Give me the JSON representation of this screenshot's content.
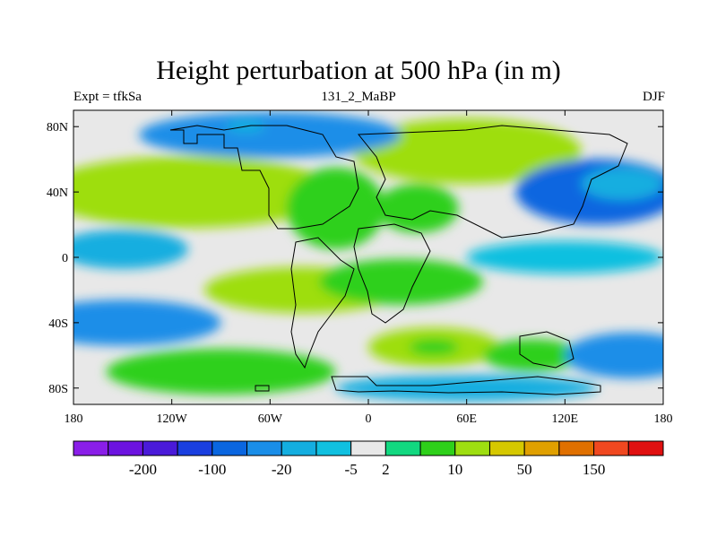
{
  "chart_data": {
    "type": "heatmap",
    "title": "Height perturbation at 500 hPa (in m)",
    "left_label": "Expt = tfkSa",
    "center_label": "131_2_MaBP",
    "right_label": "DJF",
    "x_ticks": [
      "180",
      "120W",
      "60W",
      "0",
      "60E",
      "120E",
      "180"
    ],
    "x_tick_values": [
      -180,
      -120,
      -60,
      0,
      60,
      120,
      180
    ],
    "y_ticks": [
      "80N",
      "40N",
      "0",
      "40S",
      "80S"
    ],
    "y_tick_values": [
      80,
      40,
      0,
      -40,
      -80
    ],
    "xlim": [
      -180,
      180
    ],
    "ylim": [
      -90,
      90
    ],
    "colorbar_labels": [
      "-200",
      "-100",
      "-20",
      "-5",
      "2",
      "10",
      "50",
      "150"
    ],
    "colorbar_colors": [
      "#8a1ee8",
      "#6c13e0",
      "#4a1ad9",
      "#1a3fe0",
      "#0a66e0",
      "#1a8ee8",
      "#14aee0",
      "#10c0e0",
      "#e8e8e8",
      "#12d880",
      "#2ed01a",
      "#9ede10",
      "#d6c800",
      "#e0a000",
      "#e07000",
      "#f04820",
      "#e01010"
    ],
    "blobs": [
      {
        "lon": -110,
        "lat": 40,
        "rx": 90,
        "ry": 22,
        "level": 1.7
      },
      {
        "lon": -95,
        "lat": 42,
        "rx": 35,
        "ry": 12,
        "level": 1.3
      },
      {
        "lon": 60,
        "lat": 65,
        "rx": 70,
        "ry": 20,
        "level": 1.5
      },
      {
        "lon": 85,
        "lat": 62,
        "rx": 20,
        "ry": 8,
        "level": 1.4
      },
      {
        "lon": 140,
        "lat": 40,
        "rx": 50,
        "ry": 20,
        "level": -1.8
      },
      {
        "lon": 155,
        "lat": 45,
        "rx": 25,
        "ry": 10,
        "level": -1.0
      },
      {
        "lon": -60,
        "lat": 75,
        "rx": 80,
        "ry": 14,
        "level": -1.4
      },
      {
        "lon": -75,
        "lat": 80,
        "rx": 12,
        "ry": 4,
        "level": -1.0
      },
      {
        "lon": -150,
        "lat": 5,
        "rx": 40,
        "ry": 12,
        "level": -1.2
      },
      {
        "lon": -40,
        "lat": -20,
        "rx": 60,
        "ry": 14,
        "level": 1.3
      },
      {
        "lon": 20,
        "lat": -15,
        "rx": 50,
        "ry": 14,
        "level": 1.0
      },
      {
        "lon": -150,
        "lat": -40,
        "rx": 60,
        "ry": 14,
        "level": -1.3
      },
      {
        "lon": -90,
        "lat": -70,
        "rx": 70,
        "ry": 14,
        "level": 1.2
      },
      {
        "lon": 40,
        "lat": -55,
        "rx": 40,
        "ry": 12,
        "level": 1.5
      },
      {
        "lon": 40,
        "lat": -55,
        "rx": 15,
        "ry": 5,
        "level": 1.0
      },
      {
        "lon": 100,
        "lat": -60,
        "rx": 30,
        "ry": 10,
        "level": 1.0
      },
      {
        "lon": 160,
        "lat": -60,
        "rx": 40,
        "ry": 14,
        "level": -1.3
      },
      {
        "lon": 60,
        "lat": -80,
        "rx": 80,
        "ry": 8,
        "level": -1.2
      },
      {
        "lon": 120,
        "lat": 0,
        "rx": 60,
        "ry": 10,
        "level": -0.3
      },
      {
        "lon": -20,
        "lat": 30,
        "rx": 30,
        "ry": 25,
        "level": 0.8
      },
      {
        "lon": 30,
        "lat": 30,
        "rx": 25,
        "ry": 15,
        "level": 0.8
      }
    ]
  }
}
